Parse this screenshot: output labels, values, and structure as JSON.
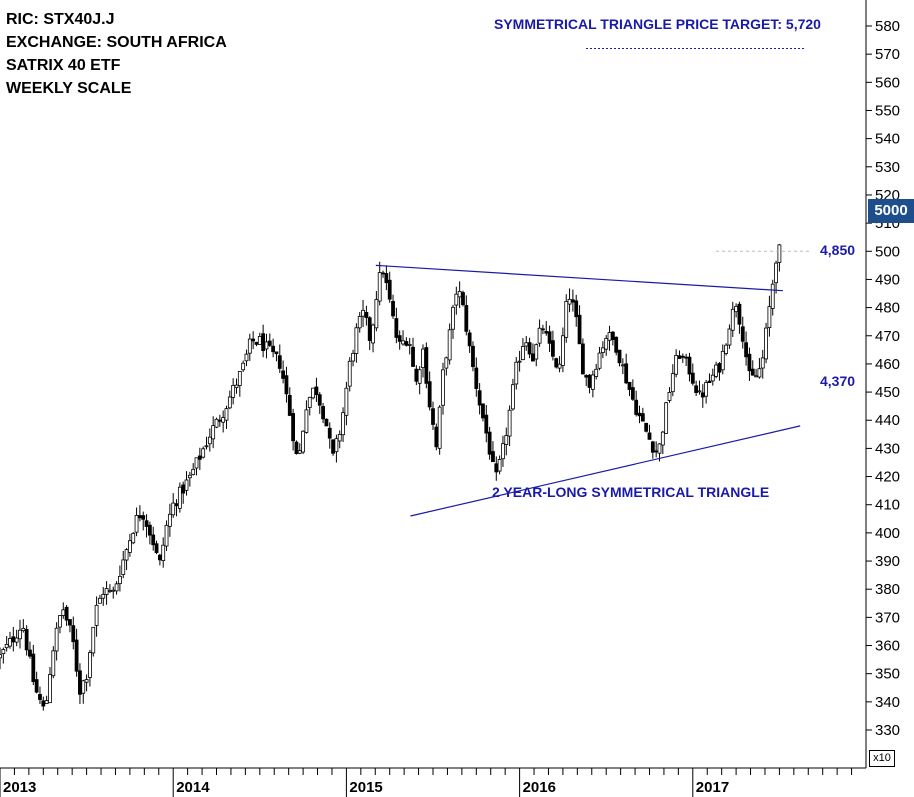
{
  "info": {
    "ric": "RIC: STX40J.J",
    "exchange": "EXCHANGE: SOUTH AFRICA",
    "name": "SATRIX 40 ETF",
    "scale": "WEEKLY SCALE"
  },
  "annotations": {
    "target": "SYMMETRICAL TRIANGLE PRICE TARGET: 5,720",
    "upper_level": "4,850",
    "lower_level": "4,370",
    "pattern": "2 YEAR-LONG SYMMETRICAL TRIANGLE"
  },
  "last_price": "5000",
  "multiplier": "x10",
  "colors": {
    "accent": "#1a1aa8",
    "last_price_box": "#1f4e8c",
    "candle": "#000000"
  },
  "chart_data": {
    "type": "candlestick",
    "timeframe": "weekly",
    "y_axis_ticks": [
      330,
      340,
      350,
      360,
      370,
      380,
      390,
      400,
      410,
      420,
      430,
      440,
      450,
      460,
      470,
      480,
      490,
      500,
      510,
      520,
      530,
      540,
      550,
      560,
      570,
      580
    ],
    "y_axis_range": [
      324,
      588
    ],
    "y_axis_multiplier": 10,
    "x_axis_labels": [
      "2013",
      "2014",
      "2015",
      "2016",
      "2017"
    ],
    "x_axis_range": [
      2013.0,
      2017.95
    ],
    "close_path": [
      [
        2013.0,
        356
      ],
      [
        2013.08,
        363
      ],
      [
        2013.13,
        368
      ],
      [
        2013.2,
        345
      ],
      [
        2013.26,
        336
      ],
      [
        2013.3,
        357
      ],
      [
        2013.36,
        374
      ],
      [
        2013.42,
        362
      ],
      [
        2013.46,
        344
      ],
      [
        2013.5,
        350
      ],
      [
        2013.55,
        372
      ],
      [
        2013.6,
        380
      ],
      [
        2013.65,
        378
      ],
      [
        2013.72,
        392
      ],
      [
        2013.78,
        404
      ],
      [
        2013.82,
        408
      ],
      [
        2013.88,
        398
      ],
      [
        2013.92,
        388
      ],
      [
        2013.96,
        402
      ],
      [
        2014.0,
        410
      ],
      [
        2014.05,
        415
      ],
      [
        2014.1,
        420
      ],
      [
        2014.16,
        428
      ],
      [
        2014.22,
        436
      ],
      [
        2014.28,
        442
      ],
      [
        2014.34,
        450
      ],
      [
        2014.4,
        458
      ],
      [
        2014.45,
        468
      ],
      [
        2014.5,
        468
      ],
      [
        2014.56,
        464
      ],
      [
        2014.62,
        460
      ],
      [
        2014.68,
        440
      ],
      [
        2014.72,
        424
      ],
      [
        2014.77,
        446
      ],
      [
        2014.82,
        452
      ],
      [
        2014.88,
        440
      ],
      [
        2014.92,
        426
      ],
      [
        2014.97,
        438
      ],
      [
        2015.02,
        460
      ],
      [
        2015.06,
        472
      ],
      [
        2015.1,
        478
      ],
      [
        2015.14,
        468
      ],
      [
        2015.18,
        488
      ],
      [
        2015.21,
        494
      ],
      [
        2015.25,
        482
      ],
      [
        2015.3,
        466
      ],
      [
        2015.36,
        470
      ],
      [
        2015.4,
        452
      ],
      [
        2015.44,
        466
      ],
      [
        2015.48,
        446
      ],
      [
        2015.52,
        430
      ],
      [
        2015.56,
        458
      ],
      [
        2015.6,
        472
      ],
      [
        2015.64,
        488
      ],
      [
        2015.68,
        478
      ],
      [
        2015.72,
        462
      ],
      [
        2015.77,
        446
      ],
      [
        2015.82,
        432
      ],
      [
        2015.86,
        418
      ],
      [
        2015.9,
        428
      ],
      [
        2015.94,
        442
      ],
      [
        2015.98,
        458
      ],
      [
        2016.03,
        470
      ],
      [
        2016.08,
        462
      ],
      [
        2016.13,
        474
      ],
      [
        2016.18,
        464
      ],
      [
        2016.23,
        458
      ],
      [
        2016.28,
        486
      ],
      [
        2016.32,
        478
      ],
      [
        2016.36,
        460
      ],
      [
        2016.4,
        452
      ],
      [
        2016.45,
        462
      ],
      [
        2016.5,
        470
      ],
      [
        2016.55,
        468
      ],
      [
        2016.6,
        458
      ],
      [
        2016.65,
        448
      ],
      [
        2016.7,
        440
      ],
      [
        2016.76,
        432
      ],
      [
        2016.8,
        428
      ],
      [
        2016.84,
        442
      ],
      [
        2016.88,
        456
      ],
      [
        2016.92,
        464
      ],
      [
        2016.98,
        458
      ],
      [
        2017.04,
        448
      ],
      [
        2017.1,
        454
      ],
      [
        2017.16,
        460
      ],
      [
        2017.21,
        474
      ],
      [
        2017.25,
        482
      ],
      [
        2017.29,
        470
      ],
      [
        2017.33,
        454
      ],
      [
        2017.37,
        456
      ],
      [
        2017.4,
        460
      ],
      [
        2017.43,
        474
      ],
      [
        2017.46,
        488
      ],
      [
        2017.48,
        498
      ],
      [
        2017.5,
        500
      ]
    ],
    "trendlines": [
      {
        "name": "upper",
        "points": [
          [
            2015.17,
            495
          ],
          [
            2017.52,
            486
          ]
        ]
      },
      {
        "name": "lower",
        "points": [
          [
            2015.37,
            406
          ],
          [
            2017.62,
            438
          ]
        ]
      }
    ],
    "target_level": 572,
    "last_close": 500
  }
}
